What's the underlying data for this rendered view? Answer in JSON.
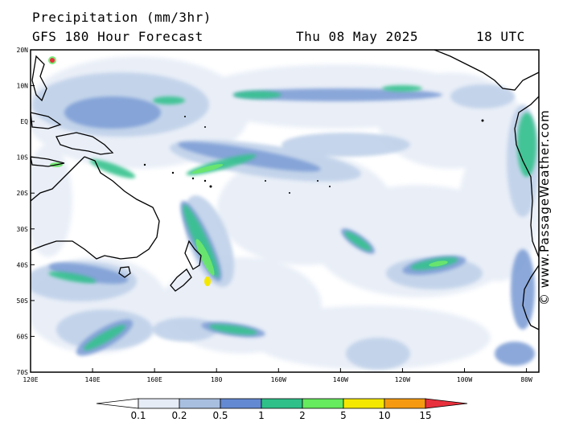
{
  "header": {
    "title": "Precipitation (mm/3hr)",
    "subtitle": "GFS 180 Hour Forecast",
    "date": "Thu 08 May 2025",
    "time": "18 UTC"
  },
  "credit": "© www.PassageWeather.com",
  "map": {
    "lat_labels": [
      "20N",
      "10N",
      "EQ",
      "10S",
      "20S",
      "30S",
      "40S",
      "50S",
      "60S",
      "70S"
    ],
    "lon_labels": [
      "120E",
      "140E",
      "160E",
      "180",
      "160W",
      "140W",
      "120W",
      "100W",
      "80W"
    ],
    "colors": {
      "land_outline": "#000000",
      "level_01": "#e8eef7",
      "level_02": "#c2d3ea",
      "level_05": "#7f9fd6",
      "level_1": "#5b86cf",
      "level_2": "#35c28d",
      "level_5": "#6ee86a"
    }
  },
  "colorbar": {
    "labels": [
      "0.1",
      "0.2",
      "0.5",
      "1",
      "2",
      "5",
      "10",
      "15"
    ],
    "colors": [
      "#ffffff",
      "#e6ecf6",
      "#a8bfe0",
      "#6389d2",
      "#2fc08a",
      "#66ea5e",
      "#f5e800",
      "#f59a10",
      "#e8303c"
    ]
  }
}
